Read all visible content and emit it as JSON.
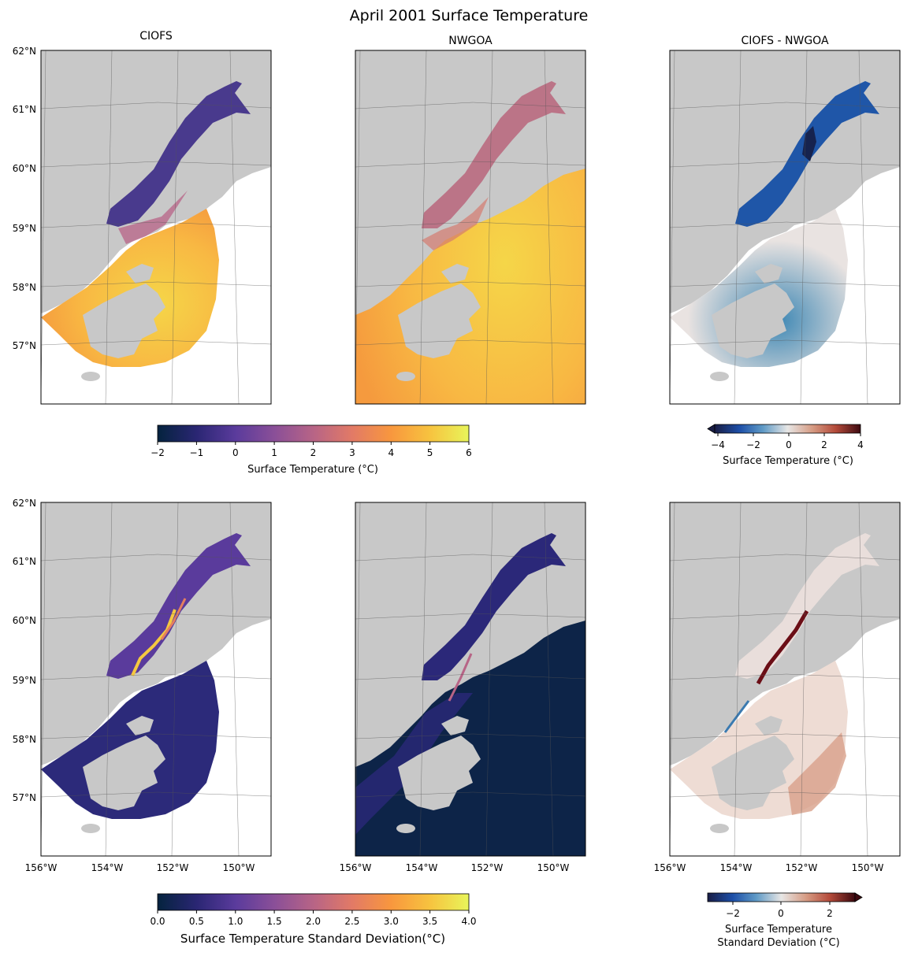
{
  "figure": {
    "title": "April 2001 Surface Temperature"
  },
  "panels": [
    {
      "title": "CIOFS",
      "row": 0,
      "col": 0,
      "field": "temp_ciofs"
    },
    {
      "title": "NWGOA",
      "row": 0,
      "col": 1,
      "field": "temp_nwgoa"
    },
    {
      "title": "CIOFS - NWGOA",
      "row": 0,
      "col": 2,
      "field": "temp_diff"
    },
    {
      "title": "",
      "row": 1,
      "col": 0,
      "field": "std_ciofs"
    },
    {
      "title": "",
      "row": 1,
      "col": 1,
      "field": "std_nwgoa"
    },
    {
      "title": "",
      "row": 1,
      "col": 2,
      "field": "std_diff"
    }
  ],
  "axes": {
    "lat_labels": [
      "62°N",
      "61°N",
      "60°N",
      "59°N",
      "58°N",
      "57°N"
    ],
    "lon_labels": [
      "156°W",
      "154°W",
      "152°W",
      "150°W"
    ]
  },
  "colorbars": {
    "temp": {
      "label": "Surface Temperature (°C)",
      "ticks": [
        "−2",
        "−1",
        "0",
        "1",
        "2",
        "3",
        "4",
        "5",
        "6"
      ],
      "range": [
        -2,
        6
      ],
      "colormap": "thermal",
      "colors": [
        "#04233e",
        "#2a2673",
        "#5a3b9c",
        "#8a4f98",
        "#b76486",
        "#e27a66",
        "#f8973e",
        "#f7c33f",
        "#e8f55a"
      ]
    },
    "temp_diff": {
      "label": "Surface Temperature (°C)",
      "ticks": [
        "−4",
        "−2",
        "0",
        "2",
        "4"
      ],
      "range": [
        -4,
        4
      ],
      "extend": "min",
      "colormap": "balance",
      "colors": [
        "#191d45",
        "#1d4fa8",
        "#5f9ac6",
        "#e7e6e5",
        "#d69b83",
        "#b44a3a",
        "#3d0a10"
      ]
    },
    "std": {
      "label": "Surface Temperature Standard Deviation(°C)",
      "ticks": [
        "0.0",
        "0.5",
        "1.0",
        "1.5",
        "2.0",
        "2.5",
        "3.0",
        "3.5",
        "4.0"
      ],
      "range": [
        0,
        4
      ],
      "colormap": "thermal",
      "colors": [
        "#04233e",
        "#2a2673",
        "#5a3b9c",
        "#8a4f98",
        "#b76486",
        "#e27a66",
        "#f8973e",
        "#f7c33f",
        "#e8f55a"
      ]
    },
    "std_diff": {
      "label_line1": "Surface Temperature",
      "label_line2": "Standard Deviation (°C)",
      "ticks": [
        "−2",
        "0",
        "2"
      ],
      "range": [
        -3,
        3
      ],
      "extend": "max",
      "colormap": "balance",
      "colors": [
        "#191d45",
        "#1d4fa8",
        "#5f9ac6",
        "#e7e6e5",
        "#d69b83",
        "#b44a3a",
        "#3d0a10"
      ]
    }
  },
  "colors": {
    "land": "#c8c8c8",
    "gridline": "#555555"
  }
}
